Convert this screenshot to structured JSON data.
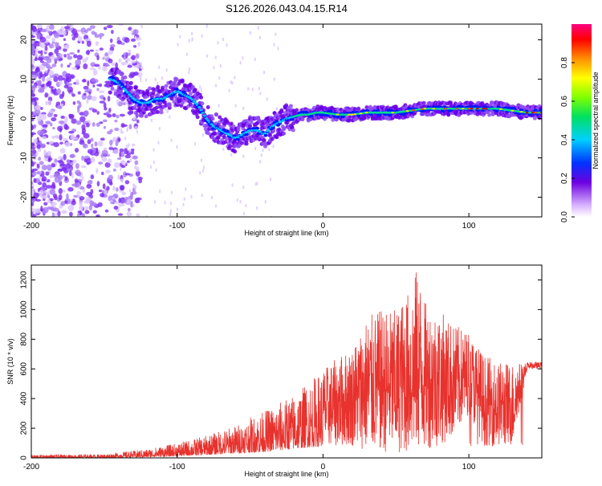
{
  "title": "S126.2026.043.04.15.R14",
  "chart_data": [
    {
      "type": "heatmap",
      "name": "spectrogram",
      "xlabel": "Height of straight line (km)",
      "ylabel": "Frequency (Hz)",
      "xlim": [
        -200,
        150
      ],
      "ylim": [
        -25,
        24
      ],
      "xticks": [
        -200,
        -100,
        0,
        100
      ],
      "xtick_labels": [
        "-200",
        "-100",
        "0",
        "100"
      ],
      "yticks": [
        -20,
        -10,
        0,
        10,
        20
      ],
      "ytick_labels": [
        "-20",
        "-10",
        "0",
        "10",
        "20"
      ],
      "ridge": {
        "x": [
          -145,
          -140,
          -135,
          -130,
          -125,
          -120,
          -115,
          -110,
          -105,
          -100,
          -95,
          -90,
          -85,
          -80,
          -75,
          -70,
          -65,
          -60,
          -55,
          -50,
          -45,
          -40,
          -35,
          -30,
          -25,
          -20,
          -15,
          -10,
          -5,
          0,
          10,
          20,
          30,
          40,
          50,
          60,
          70,
          80,
          90,
          100,
          110,
          120,
          130,
          140,
          150
        ],
        "freq": [
          10,
          9,
          7,
          5,
          4,
          4,
          5,
          5,
          6,
          7,
          6,
          5,
          3,
          0,
          -2,
          -3,
          -4,
          -5,
          -4,
          -3,
          -3,
          -4,
          -2,
          -1,
          0,
          0.5,
          1,
          1,
          1.5,
          1.5,
          1,
          1,
          1.5,
          1.5,
          1.5,
          2,
          2.5,
          2.5,
          2.5,
          2.5,
          2.5,
          2.5,
          2,
          1.5,
          1.5
        ]
      },
      "colorbar": {
        "label": "Normalized spectral amplitude",
        "range": [
          0,
          1
        ],
        "ticks": [
          0.0,
          0.2,
          0.4,
          0.6,
          0.8
        ],
        "tick_labels": [
          "0.0",
          "0.2",
          "0.4",
          "0.6",
          "0.8"
        ]
      }
    },
    {
      "type": "line",
      "name": "snr",
      "xlabel": "Height of straight line (km)",
      "ylabel": "SNR (10 * v/v)",
      "xlim": [
        -200,
        150
      ],
      "ylim": [
        0,
        1300
      ],
      "xticks": [
        -200,
        -100,
        0,
        100
      ],
      "xtick_labels": [
        "-200",
        "-100",
        "0",
        "100"
      ],
      "yticks": [
        0,
        200,
        400,
        600,
        800,
        1000,
        1200
      ],
      "ytick_labels": [
        "0",
        "200",
        "400",
        "600",
        "800",
        "1000",
        "1200"
      ],
      "color": "#e8322d",
      "envelope": {
        "x": [
          -200,
          -150,
          -120,
          -100,
          -80,
          -60,
          -40,
          -20,
          0,
          20,
          30,
          40,
          50,
          60,
          65,
          70,
          80,
          90,
          100,
          110,
          120,
          130,
          140,
          150
        ],
        "lower": [
          0,
          0,
          5,
          10,
          20,
          30,
          40,
          60,
          80,
          80,
          50,
          40,
          30,
          40,
          50,
          60,
          80,
          150,
          300,
          80,
          80,
          80,
          600,
          600
        ],
        "upper": [
          20,
          25,
          60,
          100,
          150,
          220,
          320,
          430,
          600,
          750,
          950,
          1000,
          1000,
          1150,
          1300,
          1050,
          1000,
          900,
          850,
          700,
          650,
          650,
          640,
          640
        ]
      }
    }
  ]
}
